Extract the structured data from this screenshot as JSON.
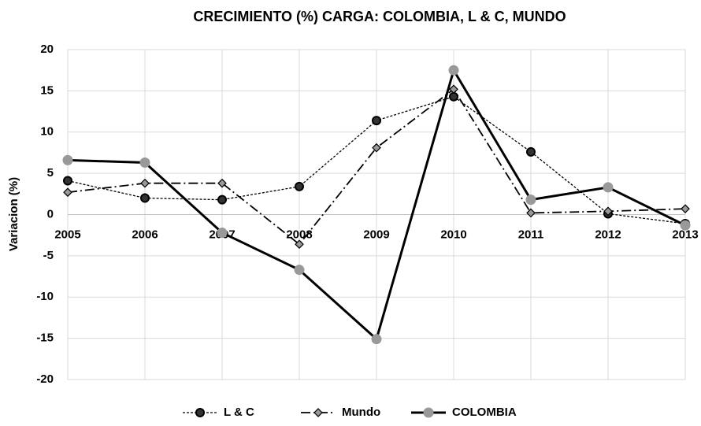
{
  "chart_data": {
    "type": "line",
    "title": "CRECIMIENTO (%) CARGA: COLOMBIA, L & C, MUNDO",
    "y_label": "Variacion (%)",
    "categories": [
      "2005",
      "2006",
      "2007",
      "2008",
      "2009",
      "2010",
      "2011",
      "2012",
      "2013"
    ],
    "series": [
      {
        "name": "L & C",
        "color": "#000000",
        "marker_color": "#333333",
        "dash": "dotted",
        "marker": "circle",
        "values": [
          4.1,
          2.0,
          1.8,
          3.4,
          11.4,
          14.3,
          7.6,
          0.1,
          -1.1
        ]
      },
      {
        "name": "Mundo",
        "color": "#000000",
        "marker_color": "#999999",
        "dash": "dashdot",
        "marker": "diamond",
        "values": [
          2.7,
          3.8,
          3.8,
          -3.6,
          8.1,
          15.2,
          0.2,
          0.4,
          0.7
        ]
      },
      {
        "name": "COLOMBIA",
        "color": "#000000",
        "marker_color": "#999999",
        "dash": "solid",
        "marker": "big-circle",
        "values": [
          6.6,
          6.3,
          -2.2,
          -6.7,
          -15.1,
          17.5,
          1.8,
          3.3,
          -1.3
        ]
      }
    ],
    "ylim": [
      -20,
      20
    ],
    "yticks": [
      -20,
      -15,
      -10,
      -5,
      0,
      5,
      10,
      15,
      20
    ],
    "grid": true,
    "legend": "bottom"
  }
}
